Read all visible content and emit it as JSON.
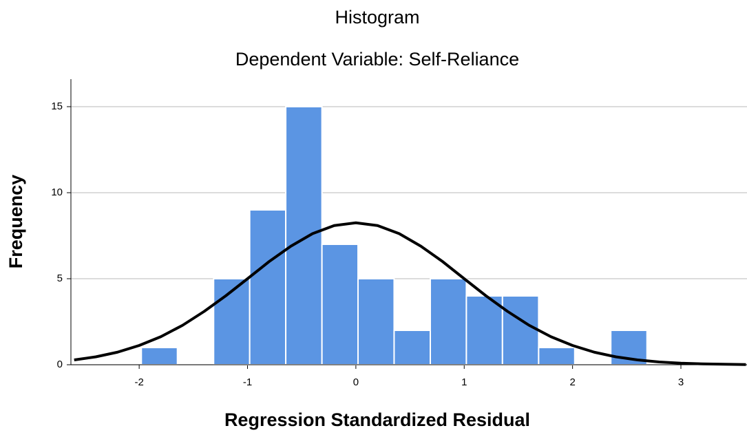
{
  "chart_data": {
    "type": "histogram",
    "title": "Histogram",
    "subtitle": "Dependent Variable: Self-Reliance",
    "x_label": "Regression Standardized Residual",
    "y_label": "Frequency",
    "bins": [
      -1.98,
      -1.647,
      -1.313,
      -0.98,
      -0.647,
      -0.313,
      0.02,
      0.353,
      0.687,
      1.02,
      1.353,
      1.687,
      2.02,
      2.353,
      2.687
    ],
    "values": [
      1,
      0,
      5,
      9,
      15,
      7,
      5,
      2,
      5,
      4,
      4,
      1,
      0,
      2
    ],
    "color": "#5b95e3",
    "curve": {
      "color": "#000000",
      "x": [
        -2.6,
        -2.4,
        -2.2,
        -2.0,
        -1.8,
        -1.6,
        -1.4,
        -1.2,
        -1.0,
        -0.8,
        -0.6,
        -0.4,
        -0.2,
        0,
        0.2,
        0.4,
        0.6,
        0.8,
        1.0,
        1.2,
        1.4,
        1.6,
        1.8,
        2.0,
        2.2,
        2.4,
        2.6,
        2.8,
        3.0,
        3.2,
        3.4,
        3.6
      ],
      "values": [
        0.28,
        0.46,
        0.73,
        1.12,
        1.63,
        2.29,
        3.1,
        4.01,
        5.0,
        6.0,
        6.89,
        7.62,
        8.09,
        8.25,
        8.09,
        7.62,
        6.89,
        6.0,
        5.0,
        4.01,
        3.1,
        2.29,
        1.63,
        1.12,
        0.73,
        0.46,
        0.28,
        0.16,
        0.09,
        0.05,
        0.03,
        0.01
      ]
    },
    "xlim": [
      -2.63,
      3.61
    ],
    "ylim": [
      0,
      16.6
    ],
    "xticks": [
      -2,
      -1,
      0,
      1,
      2,
      3
    ],
    "yticks": [
      0,
      5,
      10,
      15
    ],
    "grid": true
  }
}
